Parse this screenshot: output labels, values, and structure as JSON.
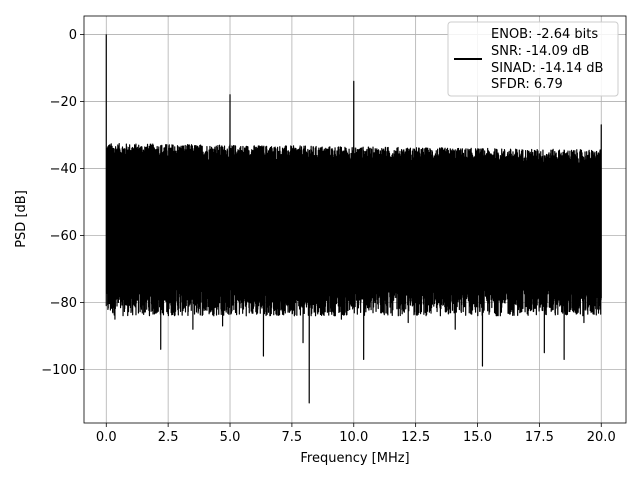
{
  "chart_data": {
    "type": "line",
    "title": "",
    "xlabel": "Frequency [MHz]",
    "ylabel": "PSD [dB]",
    "xlim": [
      -0.9,
      21.0
    ],
    "ylim": [
      -116,
      5.5
    ],
    "x_ticks": [
      0.0,
      2.5,
      5.0,
      7.5,
      10.0,
      12.5,
      15.0,
      17.5,
      20.0
    ],
    "x_tick_labels": [
      "0.0",
      "2.5",
      "5.0",
      "7.5",
      "10.0",
      "12.5",
      "15.0",
      "17.5",
      "20.0"
    ],
    "y_ticks": [
      0,
      -20,
      -40,
      -60,
      -80,
      -100
    ],
    "y_tick_labels": [
      "0",
      "−20",
      "−40",
      "−60",
      "−80",
      "−100"
    ],
    "grid": true,
    "legend_position": "top-right",
    "series": [
      {
        "color": "#000000",
        "x_range": [
          0.0,
          20.0
        ],
        "noise_upper_dB": -35,
        "noise_lower_dB": -80,
        "peaks": [
          {
            "x": 0.0,
            "y": 0
          },
          {
            "x": 5.0,
            "y": -18
          },
          {
            "x": 10.0,
            "y": -14
          },
          {
            "x": 20.0,
            "y": -27
          }
        ],
        "dips": [
          {
            "x": 0.35,
            "y": -85
          },
          {
            "x": 1.0,
            "y": -83
          },
          {
            "x": 2.2,
            "y": -94
          },
          {
            "x": 3.5,
            "y": -88
          },
          {
            "x": 4.7,
            "y": -87
          },
          {
            "x": 6.35,
            "y": -96
          },
          {
            "x": 7.95,
            "y": -92
          },
          {
            "x": 8.2,
            "y": -110
          },
          {
            "x": 9.5,
            "y": -85
          },
          {
            "x": 10.4,
            "y": -97
          },
          {
            "x": 12.2,
            "y": -86
          },
          {
            "x": 14.1,
            "y": -88
          },
          {
            "x": 15.2,
            "y": -99
          },
          {
            "x": 17.7,
            "y": -95
          },
          {
            "x": 18.5,
            "y": -97
          },
          {
            "x": 19.3,
            "y": -86
          }
        ]
      }
    ],
    "legend_lines": [
      "ENOB: -2.64 bits",
      "SNR: -14.09 dB",
      "SINAD: -14.14 dB",
      "SFDR: 6.79"
    ]
  }
}
